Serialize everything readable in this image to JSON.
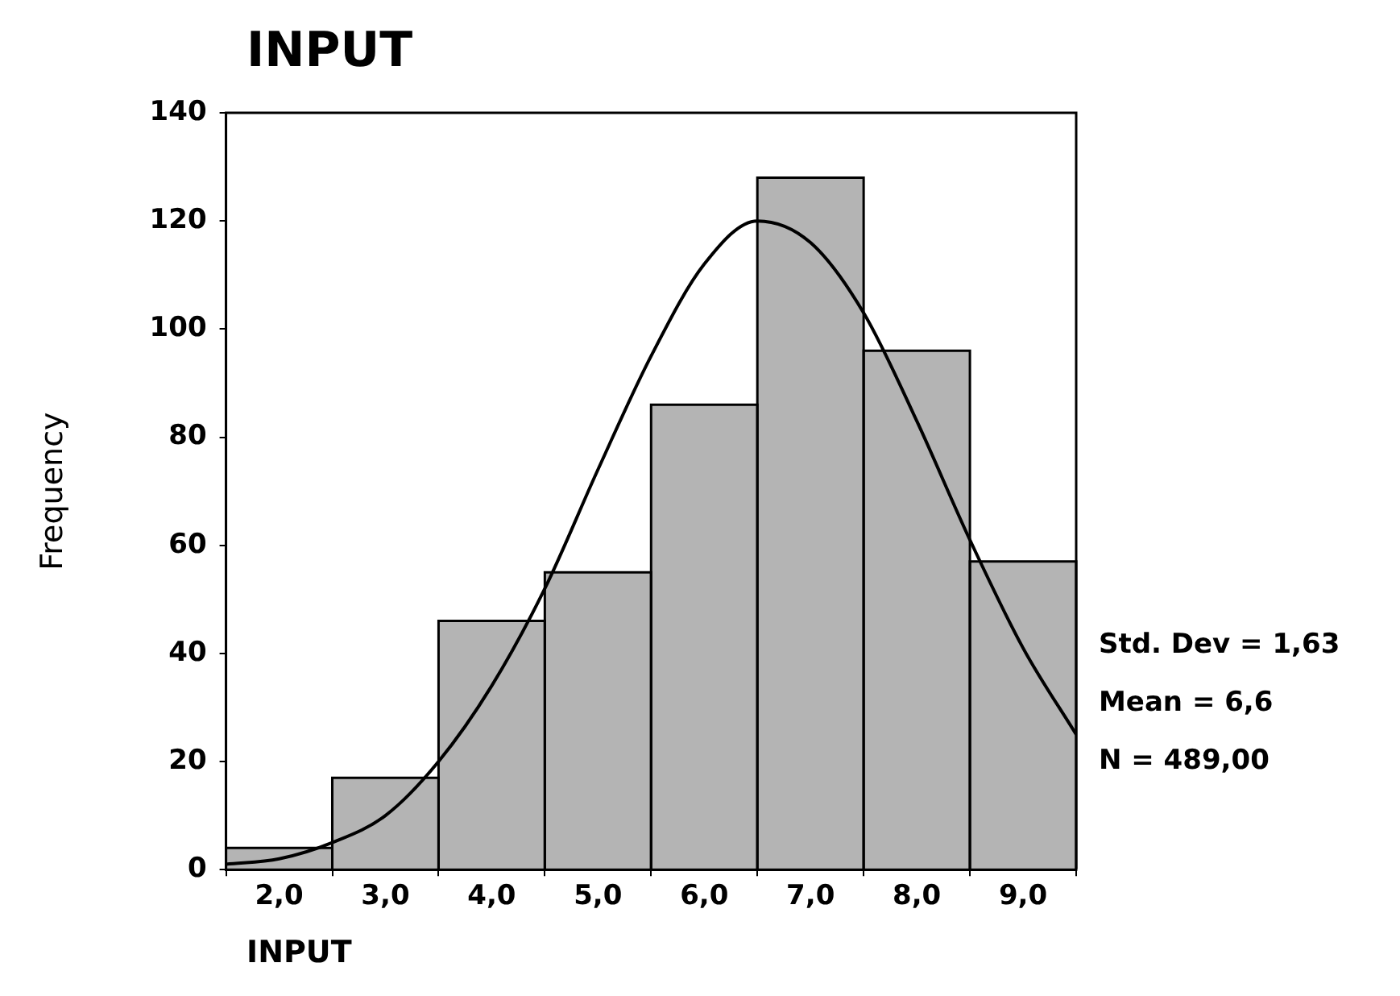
{
  "chart_data": {
    "type": "histogram",
    "title": "INPUT",
    "xlabel": "INPUT",
    "ylabel": "Frequency",
    "bins": [
      1.5,
      2.5,
      3.5,
      4.5,
      5.5,
      6.5,
      7.5,
      8.5,
      9.5
    ],
    "values": [
      4,
      17,
      46,
      55,
      86,
      128,
      96,
      57
    ],
    "color": "#b4b4b4",
    "series": [
      {
        "type": "line",
        "color": "#000000",
        "x": [
          1.5,
          2,
          2.5,
          3,
          3.5,
          4,
          4.5,
          5,
          5.5,
          6,
          6.5,
          7,
          7.5,
          8,
          8.5,
          9,
          9.5
        ],
        "values": [
          1,
          2,
          5,
          10,
          20,
          34,
          52,
          74,
          95,
          112,
          120,
          116,
          103,
          83,
          61,
          41,
          25
        ]
      }
    ],
    "xlim": [
      1.5,
      9.5
    ],
    "xticks": [
      {
        "value": 2,
        "label": "2,0"
      },
      {
        "value": 3,
        "label": "3,0"
      },
      {
        "value": 4,
        "label": "4,0"
      },
      {
        "value": 5,
        "label": "5,0"
      },
      {
        "value": 6,
        "label": "6,0"
      },
      {
        "value": 7,
        "label": "7,0"
      },
      {
        "value": 8,
        "label": "8,0"
      },
      {
        "value": 9,
        "label": "9,0"
      }
    ],
    "ylim": [
      0,
      140
    ],
    "yticks": [
      0,
      20,
      40,
      60,
      80,
      100,
      120,
      140
    ],
    "annotations": [
      "Std. Dev = 1,63",
      "Mean = 6,6",
      "N = 489,00"
    ]
  }
}
